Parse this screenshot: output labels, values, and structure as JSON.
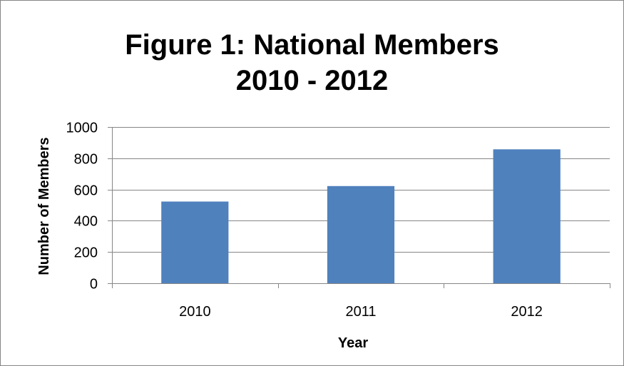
{
  "chart_data": {
    "type": "bar",
    "title": "Figure 1: National Members 2010 - 2012",
    "title_lines": [
      "Figure 1: National Members",
      "2010 - 2012"
    ],
    "categories": [
      "2010",
      "2011",
      "2012"
    ],
    "values": [
      523,
      622,
      857
    ],
    "xlabel": "Year",
    "ylabel": "Number of Members",
    "ylim": [
      0,
      1000
    ],
    "yticks": [
      0,
      200,
      400,
      600,
      800,
      1000
    ],
    "grid": true,
    "legend": "none",
    "colors": {
      "bar": "#4F81BD",
      "grid": "#868686",
      "axis": "#868686",
      "border": "#868686"
    }
  }
}
